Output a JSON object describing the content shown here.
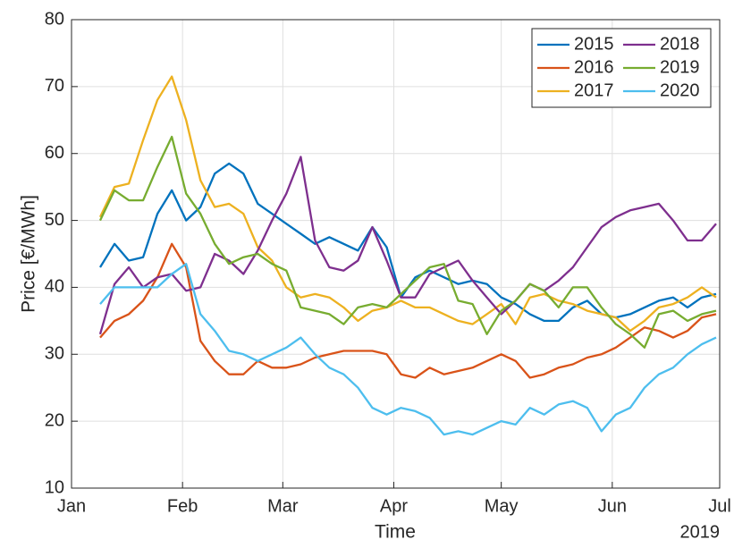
{
  "chart_data": {
    "type": "line",
    "ylabel": "Price [€/MWh]",
    "xlabel": "Time",
    "x_secondary_label": "2019",
    "xlim": [
      0,
      181
    ],
    "xticks": [
      {
        "value": 0,
        "label": "Jan"
      },
      {
        "value": 31,
        "label": "Feb"
      },
      {
        "value": 59,
        "label": "Mar"
      },
      {
        "value": 90,
        "label": "Apr"
      },
      {
        "value": 120,
        "label": "May"
      },
      {
        "value": 151,
        "label": "Jun"
      },
      {
        "value": 181,
        "label": "Jul"
      }
    ],
    "ylim": [
      10,
      80
    ],
    "yticks": [
      10,
      20,
      30,
      40,
      50,
      60,
      70,
      80
    ],
    "grid": true,
    "legend": "top-right",
    "legend_columns": 2,
    "x": [
      8,
      12,
      16,
      20,
      24,
      28,
      32,
      36,
      40,
      44,
      48,
      52,
      56,
      60,
      64,
      68,
      72,
      76,
      80,
      84,
      88,
      92,
      96,
      100,
      104,
      108,
      112,
      116,
      120,
      124,
      128,
      132,
      136,
      140,
      144,
      148,
      152,
      156,
      160,
      164,
      168,
      172,
      176,
      180
    ],
    "series": [
      {
        "name": "2015",
        "color": "#0072BD",
        "values": [
          43,
          46.5,
          44,
          44.5,
          51,
          54.5,
          50,
          52,
          57,
          58.5,
          57,
          52.5,
          51,
          49.5,
          48,
          46.5,
          47.5,
          46.5,
          45.5,
          49,
          46,
          38.5,
          41.5,
          42.5,
          41.5,
          40.5,
          41,
          40.5,
          38.5,
          37.5,
          36,
          35,
          35,
          37,
          38,
          36,
          35.5,
          36,
          37,
          38,
          38.5,
          37,
          38.5,
          39
        ]
      },
      {
        "name": "2016",
        "color": "#D95319",
        "values": [
          32.5,
          35,
          36,
          38,
          41.5,
          46.5,
          43,
          32,
          29,
          27,
          27,
          29,
          28,
          28,
          28.5,
          29.5,
          30,
          30.5,
          30.5,
          30.5,
          30,
          27,
          26.5,
          28,
          27,
          27.5,
          28,
          29,
          30,
          29,
          26.5,
          27,
          28,
          28.5,
          29.5,
          30,
          31,
          32.5,
          34,
          33.5,
          32.5,
          33.5,
          35.5,
          36
        ]
      },
      {
        "name": "2017",
        "color": "#EDB120",
        "values": [
          50.5,
          55,
          55.5,
          62,
          68,
          71.5,
          65,
          56,
          52,
          52.5,
          51,
          46,
          44,
          40,
          38.5,
          39,
          38.5,
          37,
          35,
          36.5,
          37,
          38,
          37,
          37,
          36,
          35,
          34.5,
          36,
          37.5,
          34.5,
          38.5,
          39,
          38,
          37.5,
          36.5,
          36,
          35.5,
          33.5,
          35,
          37,
          37.5,
          38.5,
          40,
          38.5
        ]
      },
      {
        "name": "2018",
        "color": "#7E2F8E",
        "values": [
          33,
          40.5,
          43,
          40,
          41.5,
          42,
          39.5,
          40,
          45,
          44,
          42,
          45.5,
          50,
          54,
          59.5,
          47,
          43,
          42.5,
          44,
          49,
          44,
          38.5,
          38.5,
          42,
          43,
          44,
          41,
          38.5,
          36,
          38,
          40.5,
          39.5,
          41,
          43,
          46,
          49,
          50.5,
          51.5,
          52,
          52.5,
          50,
          47,
          47,
          49.5
        ]
      },
      {
        "name": "2019",
        "color": "#77AC30",
        "values": [
          50,
          54.5,
          53,
          53,
          58,
          62.5,
          54,
          51,
          46.5,
          43.5,
          44.5,
          45,
          43.5,
          42.5,
          37,
          36.5,
          36,
          34.5,
          37,
          37.5,
          37,
          39,
          41,
          43,
          43.5,
          38,
          37.5,
          33,
          36.5,
          38,
          40.5,
          39.5,
          37,
          40,
          40,
          37,
          34.5,
          33,
          31,
          36,
          36.5,
          35,
          36,
          36.5
        ]
      },
      {
        "name": "2020",
        "color": "#4DBEEE",
        "values": [
          37.5,
          40,
          40,
          40,
          40,
          42,
          43.5,
          36,
          33.5,
          30.5,
          30,
          29,
          30,
          31,
          32.5,
          30,
          28,
          27,
          25,
          22,
          21,
          22,
          21.5,
          20.5,
          18,
          18.5,
          18,
          19,
          20,
          19.5,
          22,
          21,
          22.5,
          23,
          22,
          18.5,
          21,
          22,
          25,
          27,
          28,
          30,
          31.5,
          32.5
        ]
      }
    ]
  }
}
